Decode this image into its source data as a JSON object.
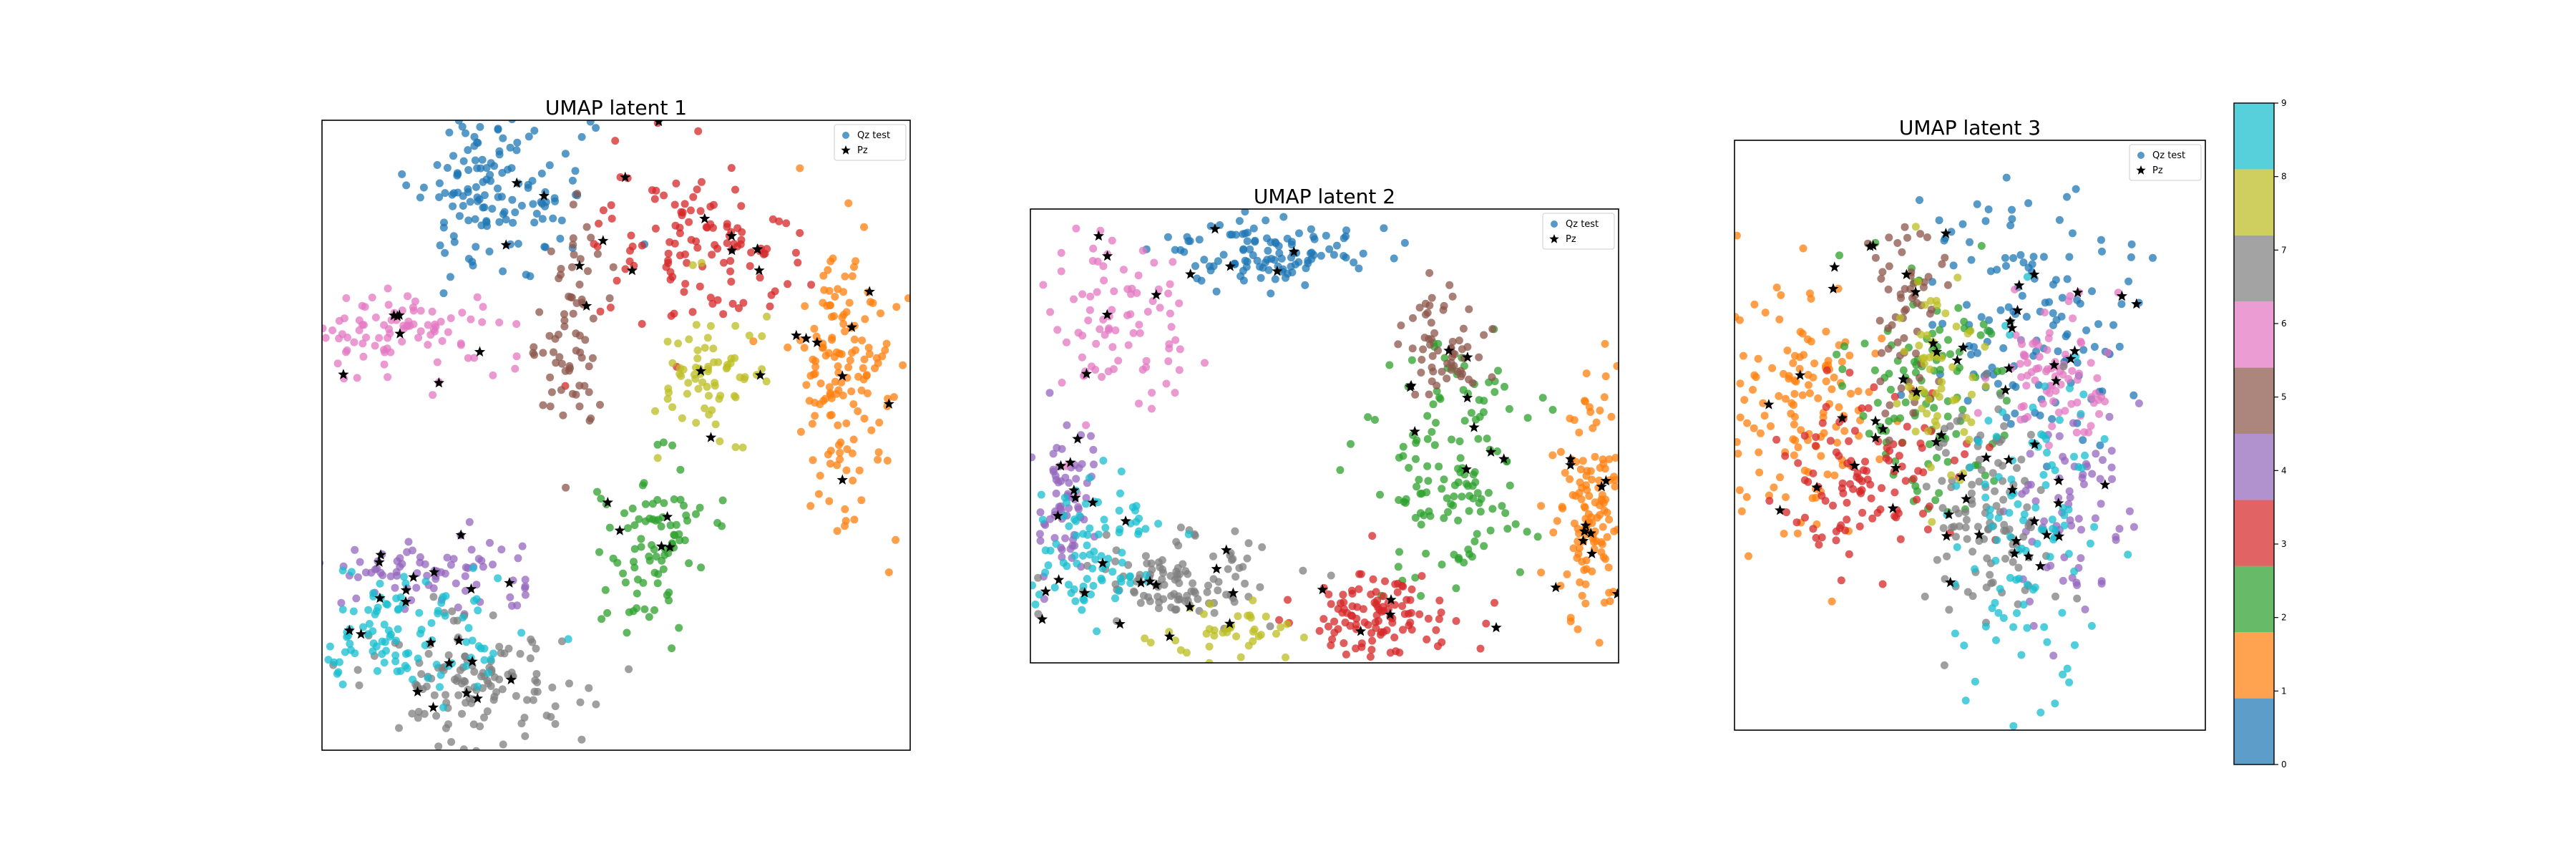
{
  "chart_data": [
    {
      "type": "scatter",
      "title": "UMAP latent 1",
      "xlabel": "",
      "ylabel": "",
      "grid": false,
      "legend": {
        "placement": "top-right",
        "entries": [
          "Qz test",
          "Pz"
        ]
      },
      "clusters": [
        {
          "label": 0,
          "center": [
            0.3,
            0.11
          ],
          "spread": [
            0.07,
            0.07
          ],
          "count": 140
        },
        {
          "label": 1,
          "center": [
            0.89,
            0.4
          ],
          "spread": [
            0.04,
            0.12
          ],
          "count": 150
        },
        {
          "label": 2,
          "center": [
            0.56,
            0.67
          ],
          "spread": [
            0.04,
            0.07
          ],
          "count": 90
        },
        {
          "label": 3,
          "center": [
            0.65,
            0.2
          ],
          "spread": [
            0.08,
            0.07
          ],
          "count": 120
        },
        {
          "label": 4,
          "center": [
            0.18,
            0.72
          ],
          "spread": [
            0.1,
            0.03
          ],
          "count": 80
        },
        {
          "label": 5,
          "center": [
            0.43,
            0.33
          ],
          "spread": [
            0.03,
            0.09
          ],
          "count": 70
        },
        {
          "label": 6,
          "center": [
            0.13,
            0.34
          ],
          "spread": [
            0.09,
            0.04
          ],
          "count": 90
        },
        {
          "label": 7,
          "center": [
            0.26,
            0.9
          ],
          "spread": [
            0.09,
            0.05
          ],
          "count": 130
        },
        {
          "label": 8,
          "center": [
            0.66,
            0.4
          ],
          "spread": [
            0.04,
            0.06
          ],
          "count": 70
        },
        {
          "label": 9,
          "center": [
            0.15,
            0.81
          ],
          "spread": [
            0.08,
            0.05
          ],
          "count": 110
        }
      ],
      "pz_count": 60
    },
    {
      "type": "scatter",
      "title": "UMAP latent 2",
      "xlabel": "",
      "ylabel": "",
      "grid": false,
      "legend": {
        "placement": "top-right",
        "entries": [
          "Qz test",
          "Pz"
        ]
      },
      "clusters": [
        {
          "label": 0,
          "center": [
            0.42,
            0.1
          ],
          "spread": [
            0.09,
            0.04
          ],
          "count": 110
        },
        {
          "label": 1,
          "center": [
            0.95,
            0.66
          ],
          "spread": [
            0.03,
            0.12
          ],
          "count": 130
        },
        {
          "label": 2,
          "center": [
            0.72,
            0.58
          ],
          "spread": [
            0.07,
            0.13
          ],
          "count": 140
        },
        {
          "label": 3,
          "center": [
            0.6,
            0.9
          ],
          "spread": [
            0.07,
            0.05
          ],
          "count": 110
        },
        {
          "label": 4,
          "center": [
            0.05,
            0.65
          ],
          "spread": [
            0.03,
            0.09
          ],
          "count": 70
        },
        {
          "label": 5,
          "center": [
            0.7,
            0.3
          ],
          "spread": [
            0.04,
            0.06
          ],
          "count": 60
        },
        {
          "label": 6,
          "center": [
            0.15,
            0.25
          ],
          "spread": [
            0.06,
            0.12
          ],
          "count": 90
        },
        {
          "label": 7,
          "center": [
            0.25,
            0.82
          ],
          "spread": [
            0.08,
            0.05
          ],
          "count": 110
        },
        {
          "label": 8,
          "center": [
            0.35,
            0.93
          ],
          "spread": [
            0.06,
            0.03
          ],
          "count": 40
        },
        {
          "label": 9,
          "center": [
            0.1,
            0.74
          ],
          "spread": [
            0.06,
            0.08
          ],
          "count": 90
        }
      ],
      "pz_count": 60
    },
    {
      "type": "scatter",
      "title": "UMAP latent 3",
      "xlabel": "",
      "ylabel": "",
      "grid": false,
      "legend": {
        "placement": "top-right",
        "entries": [
          "Qz test",
          "Pz"
        ]
      },
      "clusters": [
        {
          "label": 0,
          "center": [
            0.64,
            0.3
          ],
          "spread": [
            0.12,
            0.11
          ],
          "count": 130
        },
        {
          "label": 1,
          "center": [
            0.15,
            0.44
          ],
          "spread": [
            0.09,
            0.11
          ],
          "count": 140
        },
        {
          "label": 2,
          "center": [
            0.42,
            0.43
          ],
          "spread": [
            0.08,
            0.1
          ],
          "count": 110
        },
        {
          "label": 3,
          "center": [
            0.28,
            0.57
          ],
          "spread": [
            0.09,
            0.08
          ],
          "count": 110
        },
        {
          "label": 4,
          "center": [
            0.7,
            0.61
          ],
          "spread": [
            0.07,
            0.1
          ],
          "count": 70
        },
        {
          "label": 5,
          "center": [
            0.36,
            0.3
          ],
          "spread": [
            0.04,
            0.09
          ],
          "count": 60
        },
        {
          "label": 6,
          "center": [
            0.68,
            0.4
          ],
          "spread": [
            0.07,
            0.06
          ],
          "count": 80
        },
        {
          "label": 7,
          "center": [
            0.53,
            0.64
          ],
          "spread": [
            0.07,
            0.11
          ],
          "count": 110
        },
        {
          "label": 8,
          "center": [
            0.43,
            0.4
          ],
          "spread": [
            0.05,
            0.08
          ],
          "count": 60
        },
        {
          "label": 9,
          "center": [
            0.62,
            0.66
          ],
          "spread": [
            0.09,
            0.15
          ],
          "count": 110
        }
      ],
      "pz_count": 60
    }
  ],
  "colorbar": {
    "ticks": [
      "0",
      "1",
      "2",
      "3",
      "4",
      "5",
      "6",
      "7",
      "8",
      "9"
    ],
    "colors": [
      "#1f77b4",
      "#ff7f0e",
      "#2ca02c",
      "#d62728",
      "#9467bd",
      "#8c564b",
      "#e377c2",
      "#7f7f7f",
      "#bcbd22",
      "#17becf"
    ]
  },
  "legend_labels": {
    "qz": "Qz test",
    "pz": "Pz"
  }
}
